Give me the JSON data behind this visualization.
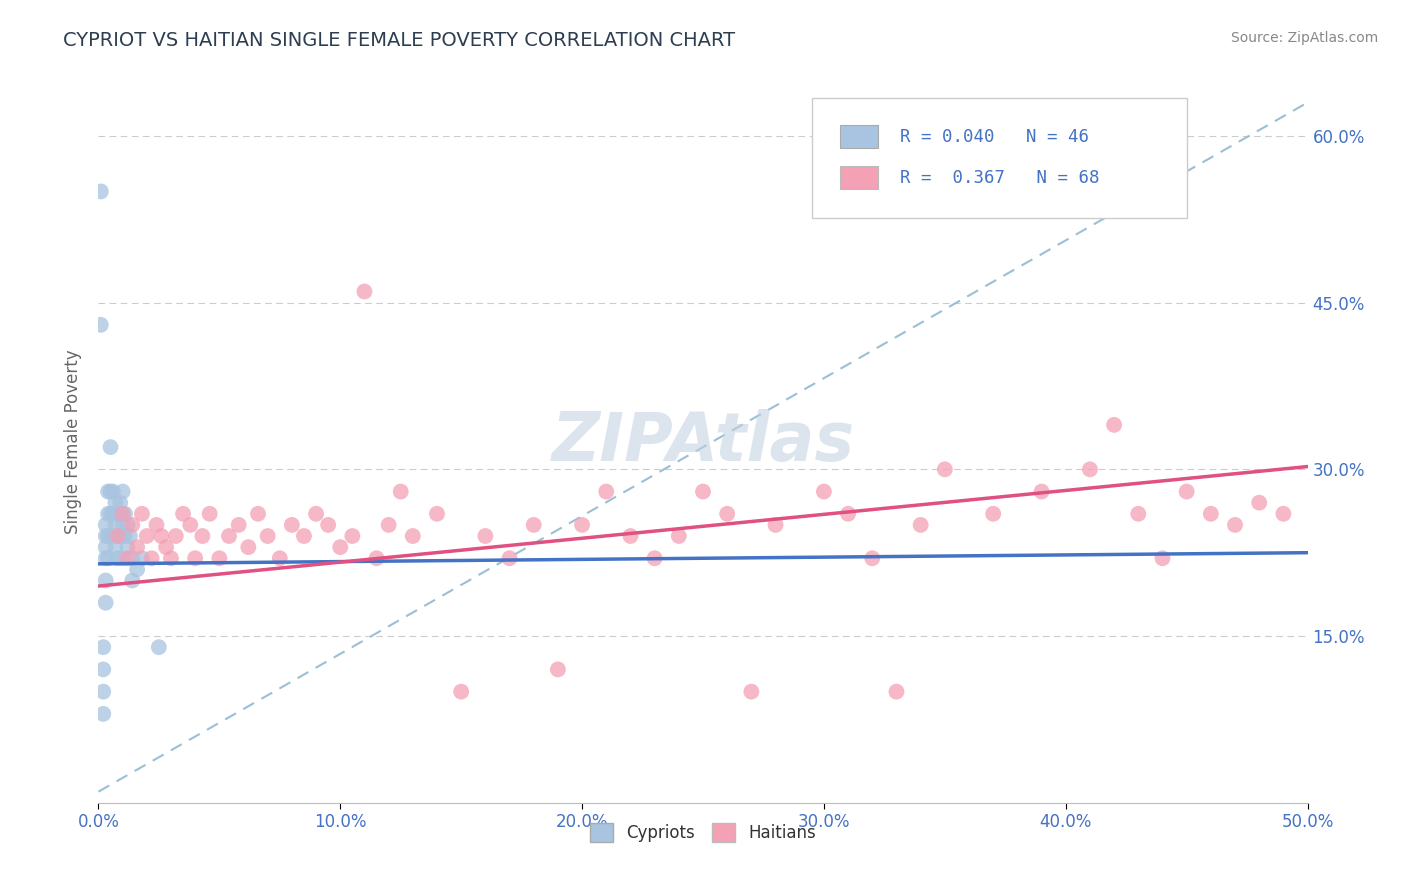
{
  "title": "CYPRIOT VS HAITIAN SINGLE FEMALE POVERTY CORRELATION CHART",
  "source": "Source: ZipAtlas.com",
  "ylabel": "Single Female Poverty",
  "xlim": [
    0.0,
    0.5
  ],
  "ylim": [
    0.0,
    0.65
  ],
  "xtick_labels": [
    "0.0%",
    "10.0%",
    "20.0%",
    "30.0%",
    "40.0%",
    "50.0%"
  ],
  "xtick_values": [
    0.0,
    0.1,
    0.2,
    0.3,
    0.4,
    0.5
  ],
  "ytick_labels": [
    "15.0%",
    "30.0%",
    "45.0%",
    "60.0%"
  ],
  "ytick_values": [
    0.15,
    0.3,
    0.45,
    0.6
  ],
  "cypriot_color": "#a8c4e0",
  "haitian_color": "#f4a0b5",
  "cypriot_line_color": "#4472c4",
  "haitian_line_color": "#e05080",
  "diagonal_line_color": "#90b8d0",
  "legend_label1": "Cypriots",
  "legend_label2": "Haitians",
  "watermark": "ZIPAtlas",
  "watermark_color": "#c8d8e8",
  "title_color": "#2c3e50",
  "axis_label_color": "#666666",
  "tick_color": "#4472c4",
  "source_color": "#888888",
  "cypriot_line_intercept": 0.215,
  "cypriot_line_slope": 0.02,
  "haitian_line_intercept": 0.195,
  "haitian_line_slope": 0.215,
  "cypriot_x": [
    0.001,
    0.001,
    0.002,
    0.002,
    0.002,
    0.002,
    0.003,
    0.003,
    0.003,
    0.003,
    0.003,
    0.003,
    0.004,
    0.004,
    0.004,
    0.004,
    0.005,
    0.005,
    0.005,
    0.005,
    0.006,
    0.006,
    0.006,
    0.007,
    0.007,
    0.007,
    0.008,
    0.008,
    0.008,
    0.009,
    0.009,
    0.01,
    0.01,
    0.01,
    0.01,
    0.01,
    0.011,
    0.011,
    0.012,
    0.012,
    0.013,
    0.014,
    0.014,
    0.016,
    0.018,
    0.025
  ],
  "cypriot_y": [
    0.55,
    0.43,
    0.14,
    0.12,
    0.1,
    0.08,
    0.25,
    0.24,
    0.23,
    0.22,
    0.2,
    0.18,
    0.28,
    0.26,
    0.24,
    0.22,
    0.32,
    0.28,
    0.26,
    0.24,
    0.28,
    0.26,
    0.24,
    0.27,
    0.25,
    0.23,
    0.26,
    0.24,
    0.22,
    0.27,
    0.24,
    0.28,
    0.26,
    0.25,
    0.24,
    0.22,
    0.26,
    0.24,
    0.25,
    0.23,
    0.24,
    0.22,
    0.2,
    0.21,
    0.22,
    0.14
  ],
  "haitian_x": [
    0.008,
    0.01,
    0.012,
    0.014,
    0.016,
    0.018,
    0.02,
    0.022,
    0.024,
    0.026,
    0.028,
    0.03,
    0.032,
    0.035,
    0.038,
    0.04,
    0.043,
    0.046,
    0.05,
    0.054,
    0.058,
    0.062,
    0.066,
    0.07,
    0.075,
    0.08,
    0.085,
    0.09,
    0.095,
    0.1,
    0.105,
    0.11,
    0.115,
    0.12,
    0.125,
    0.13,
    0.14,
    0.15,
    0.16,
    0.17,
    0.18,
    0.19,
    0.2,
    0.21,
    0.22,
    0.23,
    0.24,
    0.25,
    0.26,
    0.27,
    0.28,
    0.3,
    0.31,
    0.32,
    0.33,
    0.34,
    0.35,
    0.37,
    0.39,
    0.41,
    0.42,
    0.43,
    0.44,
    0.45,
    0.46,
    0.47,
    0.48,
    0.49
  ],
  "haitian_y": [
    0.24,
    0.26,
    0.22,
    0.25,
    0.23,
    0.26,
    0.24,
    0.22,
    0.25,
    0.24,
    0.23,
    0.22,
    0.24,
    0.26,
    0.25,
    0.22,
    0.24,
    0.26,
    0.22,
    0.24,
    0.25,
    0.23,
    0.26,
    0.24,
    0.22,
    0.25,
    0.24,
    0.26,
    0.25,
    0.23,
    0.24,
    0.46,
    0.22,
    0.25,
    0.28,
    0.24,
    0.26,
    0.1,
    0.24,
    0.22,
    0.25,
    0.12,
    0.25,
    0.28,
    0.24,
    0.22,
    0.24,
    0.28,
    0.26,
    0.1,
    0.25,
    0.28,
    0.26,
    0.22,
    0.1,
    0.25,
    0.3,
    0.26,
    0.28,
    0.3,
    0.34,
    0.26,
    0.22,
    0.28,
    0.26,
    0.25,
    0.27,
    0.26
  ]
}
